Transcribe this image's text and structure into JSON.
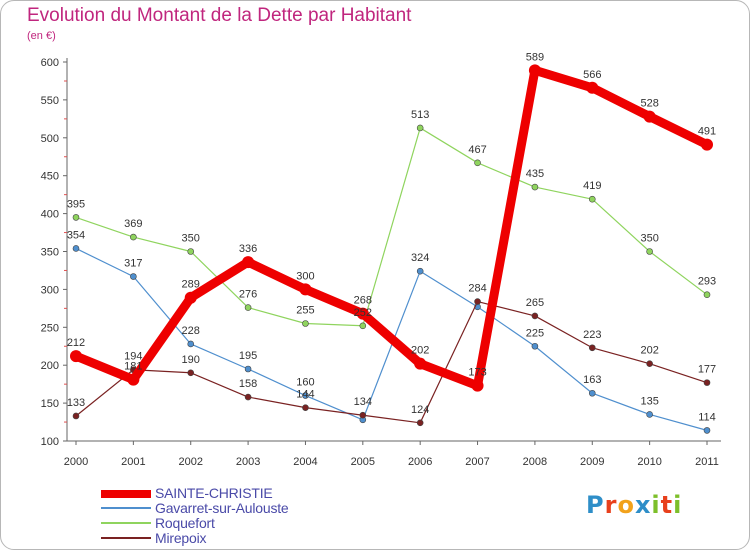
{
  "title": "Evolution du Montant de la Dette par Habitant",
  "subtitle": "(en €)",
  "logo": {
    "text": "Proxiti",
    "letters": [
      "P",
      "r",
      "o",
      "x",
      "i",
      "t",
      "i"
    ],
    "colors": [
      "#2e8ec8",
      "#e8401c",
      "#f2a21b",
      "#2e8ec8",
      "#7dbf2a",
      "#e8401c",
      "#7dbf2a"
    ]
  },
  "chart_data": {
    "type": "line",
    "title": "Evolution du Montant de la Dette par Habitant",
    "subtitle": "(en €)",
    "xlabel": "",
    "ylabel": "",
    "x": [
      "2000",
      "2001",
      "2002",
      "2003",
      "2004",
      "2005",
      "2006",
      "2007",
      "2008",
      "2009",
      "2010",
      "2011"
    ],
    "ylim": [
      100,
      600
    ],
    "yticks": [
      100,
      150,
      200,
      250,
      300,
      350,
      400,
      450,
      500,
      550,
      600
    ],
    "grid": false,
    "legend_position": "bottom-left",
    "series": [
      {
        "name": "SAINTE-CHRISTIE",
        "color": "#ee0000",
        "values": [
          212,
          181,
          289,
          336,
          300,
          268,
          202,
          173,
          589,
          566,
          528,
          491
        ],
        "labels": [
          "212",
          "181",
          "289",
          "336",
          "300",
          "268",
          "202",
          "173",
          "589",
          "566",
          "528",
          "491"
        ]
      },
      {
        "name": "Gavarret-sur-Aulouste",
        "color": "#4f8fce",
        "values": [
          354,
          317,
          228,
          195,
          160,
          128,
          324,
          277,
          225,
          163,
          135,
          114
        ],
        "labels": [
          "354",
          "317",
          "228",
          "195",
          "160",
          "",
          "324",
          "",
          "225",
          "163",
          "135",
          "114"
        ]
      },
      {
        "name": "Roquefort",
        "color": "#8fd45e",
        "values": [
          395,
          369,
          350,
          276,
          255,
          252,
          513,
          467,
          435,
          419,
          350,
          293
        ],
        "labels": [
          "395",
          "369",
          "350",
          "276",
          "255",
          "252",
          "513",
          "467",
          "435",
          "419",
          "350",
          "293"
        ]
      },
      {
        "name": "Mirepoix",
        "color": "#7a2222",
        "values": [
          133,
          194,
          190,
          158,
          144,
          134,
          124,
          284,
          265,
          223,
          202,
          177
        ],
        "labels": [
          "133",
          "194",
          "190",
          "158",
          "144",
          "134",
          "124",
          "284",
          "265",
          "223",
          "202",
          "177"
        ]
      }
    ]
  }
}
